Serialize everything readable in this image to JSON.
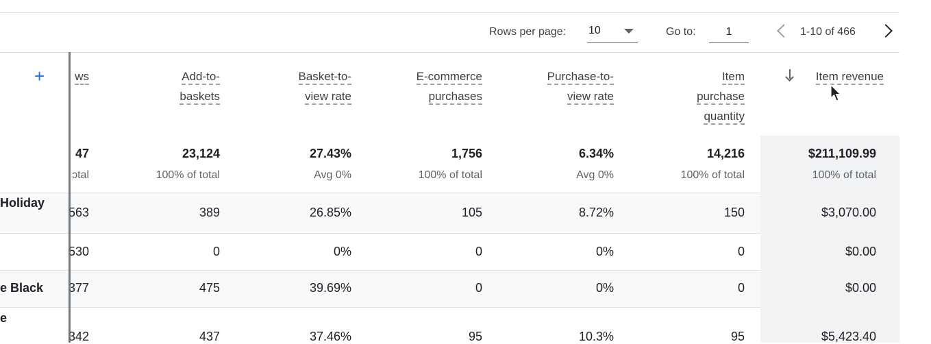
{
  "pager": {
    "rows_per_page_label": "Rows per page:",
    "rows_per_page_value": "10",
    "goto_label": "Go to:",
    "goto_value": "1",
    "range_text": "1-10 of 466"
  },
  "columns": [
    {
      "key": "views",
      "lines": [
        "ws"
      ]
    },
    {
      "key": "add_to_baskets",
      "lines": [
        "Add-to-",
        "baskets"
      ]
    },
    {
      "key": "basket_to_view_rate",
      "lines": [
        "Basket-to-",
        "view rate"
      ]
    },
    {
      "key": "ecommerce_purchases",
      "lines": [
        "E-commerce",
        "purchases"
      ]
    },
    {
      "key": "purchase_to_view_rate",
      "lines": [
        "Purchase-to-",
        "view rate"
      ]
    },
    {
      "key": "item_purchase_quantity",
      "lines": [
        "Item",
        "purchase",
        "quantity"
      ]
    },
    {
      "key": "item_revenue",
      "lines": [
        "Item revenue"
      ]
    }
  ],
  "totals": {
    "values": [
      "47",
      "23,124",
      "27.43%",
      "1,756",
      "6.34%",
      "14,216",
      "$211,109.99"
    ],
    "subs": [
      "ɔtal",
      "100% of total",
      "Avg 0%",
      "100% of total",
      "Avg 0%",
      "100% of total",
      "100% of total"
    ]
  },
  "rows": [
    {
      "dim": "Holiday",
      "values": [
        "563",
        "389",
        "26.85%",
        "105",
        "8.72%",
        "150",
        "$3,070.00"
      ]
    },
    {
      "dim": "",
      "values": [
        "530",
        "0",
        "0%",
        "0",
        "0%",
        "0",
        "$0.00"
      ]
    },
    {
      "dim": "e Black",
      "values": [
        "377",
        "475",
        "39.69%",
        "0",
        "0%",
        "0",
        "$0.00"
      ]
    },
    {
      "dim": "e",
      "values": [
        "342",
        "437",
        "37.46%",
        "95",
        "10.3%",
        "95",
        "$5,423.40"
      ]
    }
  ],
  "icons": {
    "add_dimension": "plus-icon",
    "sort": "arrow-down-icon",
    "prev": "chevron-left-icon",
    "next": "chevron-right-icon",
    "cursor": "mouse-pointer-icon",
    "dropdown": "caret-down-icon"
  },
  "colors": {
    "accent": "#1a73e8",
    "sorted_column_bg": "#f1f3f4",
    "stripe_bg": "#f8f9fa"
  }
}
